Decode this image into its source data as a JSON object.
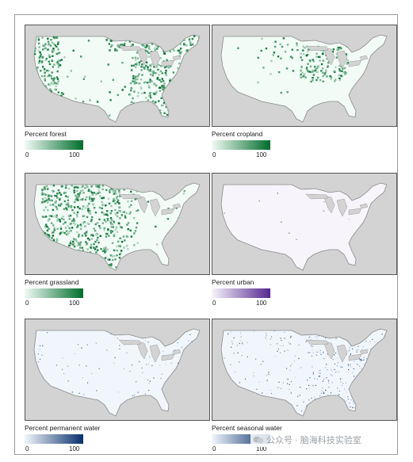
{
  "panels": [
    {
      "id": "forest",
      "title": "Percent forest",
      "min_label": "0",
      "max_label": "100",
      "ramp": [
        "#f2fbf6",
        "#006d2c"
      ],
      "mean_intensity": 0.55
    },
    {
      "id": "cropland",
      "title": "Percent cropland",
      "min_label": "0",
      "max_label": "100",
      "ramp": [
        "#f2fbf6",
        "#006d2c"
      ],
      "mean_intensity": 0.35
    },
    {
      "id": "grassland",
      "title": "Percent grassland",
      "min_label": "0",
      "max_label": "100",
      "ramp": [
        "#f2fbf6",
        "#006d2c"
      ],
      "mean_intensity": 0.5
    },
    {
      "id": "urban",
      "title": "Percent urban",
      "min_label": "0",
      "max_label": "100",
      "ramp": [
        "#f7f4fb",
        "#54278f"
      ],
      "mean_intensity": 0.05
    },
    {
      "id": "permanent-water",
      "title": "Percent permanent water",
      "min_label": "0",
      "max_label": "100",
      "ramp": [
        "#f1f6fc",
        "#08306b"
      ],
      "mean_intensity": 0.08
    },
    {
      "id": "seasonal-water",
      "title": "Percent seasonal water",
      "min_label": "0",
      "max_label": "100",
      "ramp": [
        "#f1f6fc",
        "#08306b"
      ],
      "mean_intensity": 0.2
    }
  ],
  "background_color": "#d3d3d3",
  "watermark": "公众号 · 脑海科技实验室"
}
